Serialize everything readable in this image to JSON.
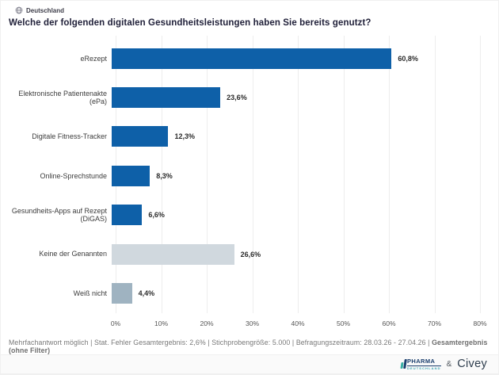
{
  "header": {
    "region_label": "Deutschland",
    "question": "Welche der folgenden digitalen Gesundheitsleistungen haben Sie bereits genutzt?"
  },
  "chart_data": {
    "type": "bar",
    "orientation": "horizontal",
    "categories": [
      "eRezept",
      "Elektronische Patientenakte (ePa)",
      "Digitale Fitness-Tracker",
      "Online-Sprechstunde",
      "Gesundheits-Apps auf Rezept (DiGAS)",
      "Keine der Genannten",
      "Weiß nicht"
    ],
    "values": [
      60.8,
      23.6,
      12.3,
      8.3,
      6.6,
      26.6,
      4.4
    ],
    "value_labels": [
      "60,8%",
      "23,6%",
      "12,3%",
      "8,3%",
      "6,6%",
      "26,6%",
      "4,4%"
    ],
    "bar_colors": [
      "#0e60a8",
      "#0e60a8",
      "#0e60a8",
      "#0e60a8",
      "#0e60a8",
      "#d0d8de",
      "#9fb3c1"
    ],
    "xlim": [
      0,
      80
    ],
    "xticks": [
      "0%",
      "10%",
      "20%",
      "30%",
      "40%",
      "50%",
      "60%",
      "70%",
      "80%"
    ],
    "grid": true,
    "title": "Welche der folgenden digitalen Gesundheitsleistungen haben Sie bereits genutzt?",
    "xlabel": "",
    "ylabel": ""
  },
  "footer": {
    "note": "Mehrfachantwort möglich | Stat. Fehler Gesamtergebnis: 2,6% | Stichprobengröße: 5.000 | Befragungszeitraum: 28.03.26 - 27.04.26 | ",
    "note_bold": "Gesamtergebnis (ohne Filter)"
  },
  "branding": {
    "pharma_name": "PHARMA",
    "pharma_sub": "DEUTSCHLAND",
    "separator": "&",
    "civey_name": "Civey"
  },
  "colors": {
    "primary_bar": "#0e60a8",
    "none_bar": "#d0d8de",
    "dontknow_bar": "#9fb3c1",
    "gridline": "#ededed"
  }
}
